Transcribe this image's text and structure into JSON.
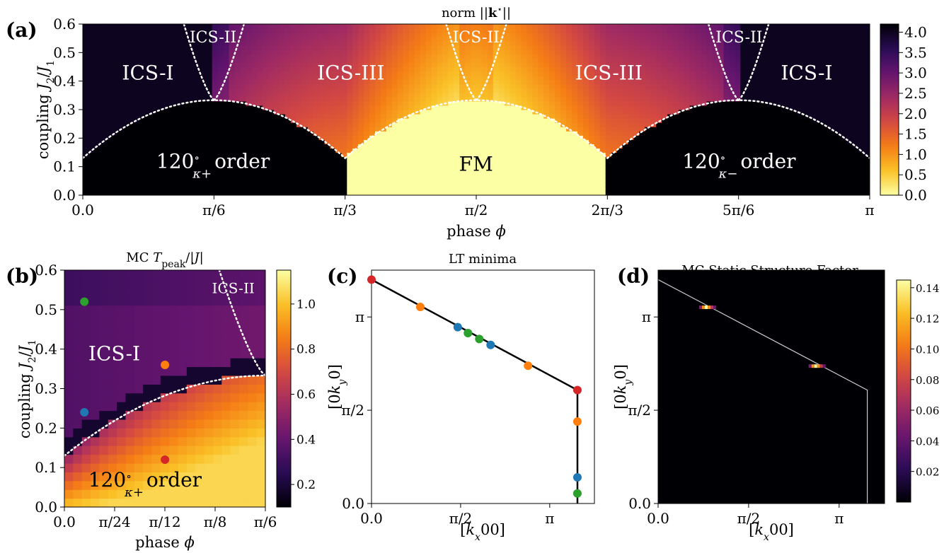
{
  "figure": {
    "panels": {
      "a": {
        "letter": "(a)"
      },
      "b": {
        "letter": "(b)"
      },
      "c": {
        "letter": "(c)"
      },
      "d": {
        "letter": "(d)"
      }
    }
  },
  "chart_data": [
    {
      "id": "a",
      "type": "heatmap",
      "title": "norm ||k*||",
      "xlabel": "phase ϕ",
      "ylabel": "coupling J2/J1",
      "xlim": [
        0,
        3.14159
      ],
      "ylim": [
        0,
        0.6
      ],
      "x_ticks": [
        "0.0",
        "π/6",
        "π/3",
        "π/2",
        "2π/3",
        "5π/6",
        "π"
      ],
      "y_ticks": [
        "0.0",
        "0.1",
        "0.2",
        "0.3",
        "0.4",
        "0.5",
        "0.6"
      ],
      "colorbar": {
        "colormap": "inferno_r",
        "range": [
          0,
          4.2
        ],
        "ticks": [
          "0.0",
          "0.5",
          "1.0",
          "1.5",
          "2.0",
          "2.5",
          "3.0",
          "3.5",
          "4.0"
        ]
      },
      "regions": [
        {
          "label": "ICS-I",
          "phase": 0.26,
          "coupling": 0.43
        },
        {
          "label": "ICS-II",
          "phase": 0.52,
          "coupling": 0.56
        },
        {
          "label": "ICS-III",
          "phase": 1.07,
          "coupling": 0.43
        },
        {
          "label": "ICS-II",
          "phase": 1.57,
          "coupling": 0.56
        },
        {
          "label": "ICS-III",
          "phase": 2.1,
          "coupling": 0.43
        },
        {
          "label": "ICS-II",
          "phase": 2.62,
          "coupling": 0.56
        },
        {
          "label": "ICS-I",
          "phase": 2.89,
          "coupling": 0.43
        },
        {
          "label_main": "120",
          "label_sup": "∘",
          "label_sub": "κ+",
          "label_suffix": "order",
          "phase": 0.52,
          "coupling": 0.12
        },
        {
          "label": "FM",
          "phase": 1.57,
          "coupling": 0.11
        },
        {
          "label_main": "120",
          "label_sup": "∘",
          "label_sub": "κ−",
          "label_suffix": "order",
          "phase": 2.62,
          "coupling": 0.12
        }
      ],
      "boundaries": {
        "dome_peak_coupling": 0.333,
        "dome_edge_coupling": 0.13,
        "dome_centers": [
          0.5236,
          1.5708,
          2.618
        ]
      }
    },
    {
      "id": "b",
      "type": "heatmap",
      "title": "MC Tpeak/|J|",
      "xlabel": "phase ϕ",
      "ylabel": "coupling J2/J1",
      "xlim": [
        0,
        0.5236
      ],
      "ylim": [
        0,
        0.6
      ],
      "x_ticks": [
        "0.0",
        "π/24",
        "π/12",
        "π/8",
        "π/6"
      ],
      "y_ticks": [
        "0.0",
        "0.1",
        "0.2",
        "0.3",
        "0.4",
        "0.5",
        "0.6"
      ],
      "colorbar": {
        "colormap": "inferno",
        "range": [
          0.1,
          1.15
        ],
        "ticks": [
          "0.2",
          "0.4",
          "0.6",
          "0.8",
          "1.0"
        ]
      },
      "regions": [
        {
          "label": "ICS-I",
          "phase": 0.13,
          "coupling": 0.39
        },
        {
          "label": "ICS-II",
          "phase": 0.44,
          "coupling": 0.56
        },
        {
          "label_main": "120",
          "label_sup": "∘",
          "label_sub": "κ+",
          "label_suffix": "order",
          "phase": 0.21,
          "coupling": 0.07
        }
      ],
      "points": [
        {
          "phase": 0.052,
          "coupling": 0.52,
          "color": "#2ca02c"
        },
        {
          "phase": 0.052,
          "coupling": 0.24,
          "color": "#1f77b4"
        },
        {
          "phase": 0.262,
          "coupling": 0.36,
          "color": "#ff7f0e"
        },
        {
          "phase": 0.262,
          "coupling": 0.12,
          "color": "#d62728"
        }
      ]
    },
    {
      "id": "c",
      "type": "line",
      "title": "LT minima",
      "xlabel": "[kx00]",
      "ylabel": "[0ky0]",
      "xlim": [
        0,
        3.93
      ],
      "ylim": [
        0,
        3.93
      ],
      "x_ticks": [
        "0.0",
        "π/2",
        "π"
      ],
      "y_ticks": [
        "0.0",
        "π/2",
        "π"
      ],
      "line": [
        [
          0,
          3.77
        ],
        [
          3.63,
          1.91
        ],
        [
          3.63,
          0
        ]
      ],
      "points": [
        {
          "x": 0.0,
          "y": 3.77,
          "color": "#d62728"
        },
        {
          "x": 0.86,
          "y": 3.31,
          "color": "#ff7f0e"
        },
        {
          "x": 1.52,
          "y": 2.97,
          "color": "#1f77b4"
        },
        {
          "x": 1.7,
          "y": 2.87,
          "color": "#2ca02c"
        },
        {
          "x": 1.9,
          "y": 2.77,
          "color": "#2ca02c"
        },
        {
          "x": 2.1,
          "y": 2.67,
          "color": "#1f77b4"
        },
        {
          "x": 2.76,
          "y": 2.32,
          "color": "#ff7f0e"
        },
        {
          "x": 3.63,
          "y": 1.91,
          "color": "#d62728"
        },
        {
          "x": 3.63,
          "y": 1.38,
          "color": "#ff7f0e"
        },
        {
          "x": 3.63,
          "y": 0.44,
          "color": "#1f77b4"
        },
        {
          "x": 3.63,
          "y": 0.17,
          "color": "#2ca02c"
        }
      ]
    },
    {
      "id": "d",
      "type": "heatmap",
      "title": "MC Static Structure Factor",
      "xlabel": "[kx00]",
      "ylabel": "[0ky0]",
      "xlim": [
        0,
        3.93
      ],
      "ylim": [
        0,
        3.93
      ],
      "x_ticks": [
        "0.0",
        "π/2",
        "π"
      ],
      "y_ticks": [
        "0.0",
        "π/2",
        "π"
      ],
      "colorbar": {
        "colormap": "inferno",
        "range": [
          0,
          0.145
        ],
        "ticks": [
          "0.02",
          "0.04",
          "0.06",
          "0.08",
          "0.10",
          "0.12",
          "0.14"
        ]
      },
      "line": [
        [
          0,
          3.77
        ],
        [
          3.63,
          1.91
        ],
        [
          3.63,
          0
        ]
      ],
      "peaks": [
        {
          "x": 0.86,
          "y": 3.31,
          "value": 0.14
        },
        {
          "x": 2.76,
          "y": 2.32,
          "value": 0.14
        }
      ]
    }
  ]
}
